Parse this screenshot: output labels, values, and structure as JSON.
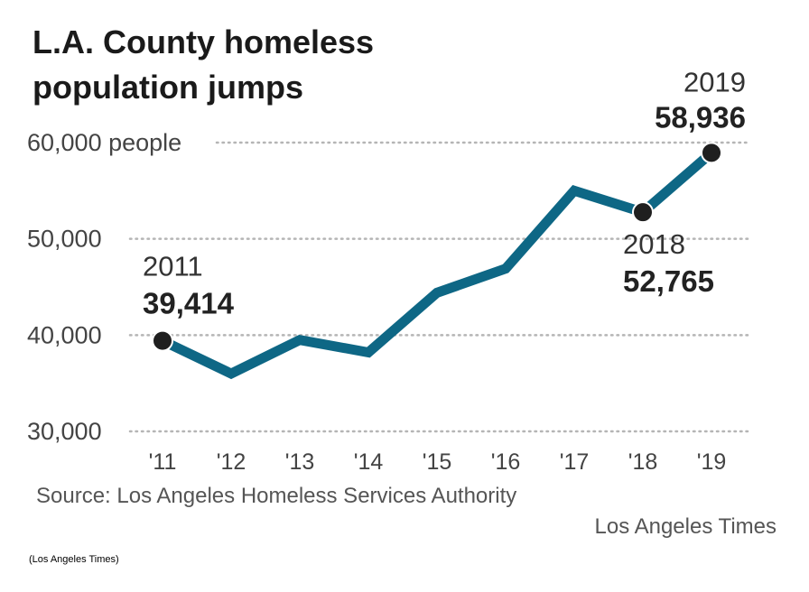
{
  "chart_data": {
    "type": "line",
    "title_lines": [
      "L.A. County homeless",
      "population jumps"
    ],
    "x": [
      "'11",
      "'12",
      "'13",
      "'14",
      "'15",
      "'16",
      "'17",
      "'18",
      "'19"
    ],
    "series": [
      {
        "values": [
          39414,
          36000,
          39500,
          38200,
          44400,
          46900,
          55000,
          52765,
          58936
        ]
      }
    ],
    "ylim": [
      30000,
      60000
    ],
    "yticks": [
      30000,
      40000,
      50000,
      60000
    ],
    "ytick_labels": [
      "30,000",
      "40,000",
      "50,000",
      "60,000 people"
    ],
    "grid": true,
    "annotations": [
      {
        "x": "'11",
        "year": "2011",
        "value_label": "39,414"
      },
      {
        "x": "'18",
        "year": "2018",
        "value_label": "52,765"
      },
      {
        "x": "'19",
        "year": "2019",
        "value_label": "58,936"
      }
    ],
    "line_color": "#0e6785",
    "marker_color": "#1f1f1f"
  },
  "source": "Source: Los Angeles Homeless Services Authority",
  "credit": "Los Angeles Times",
  "caption": "(Los Angeles Times)"
}
